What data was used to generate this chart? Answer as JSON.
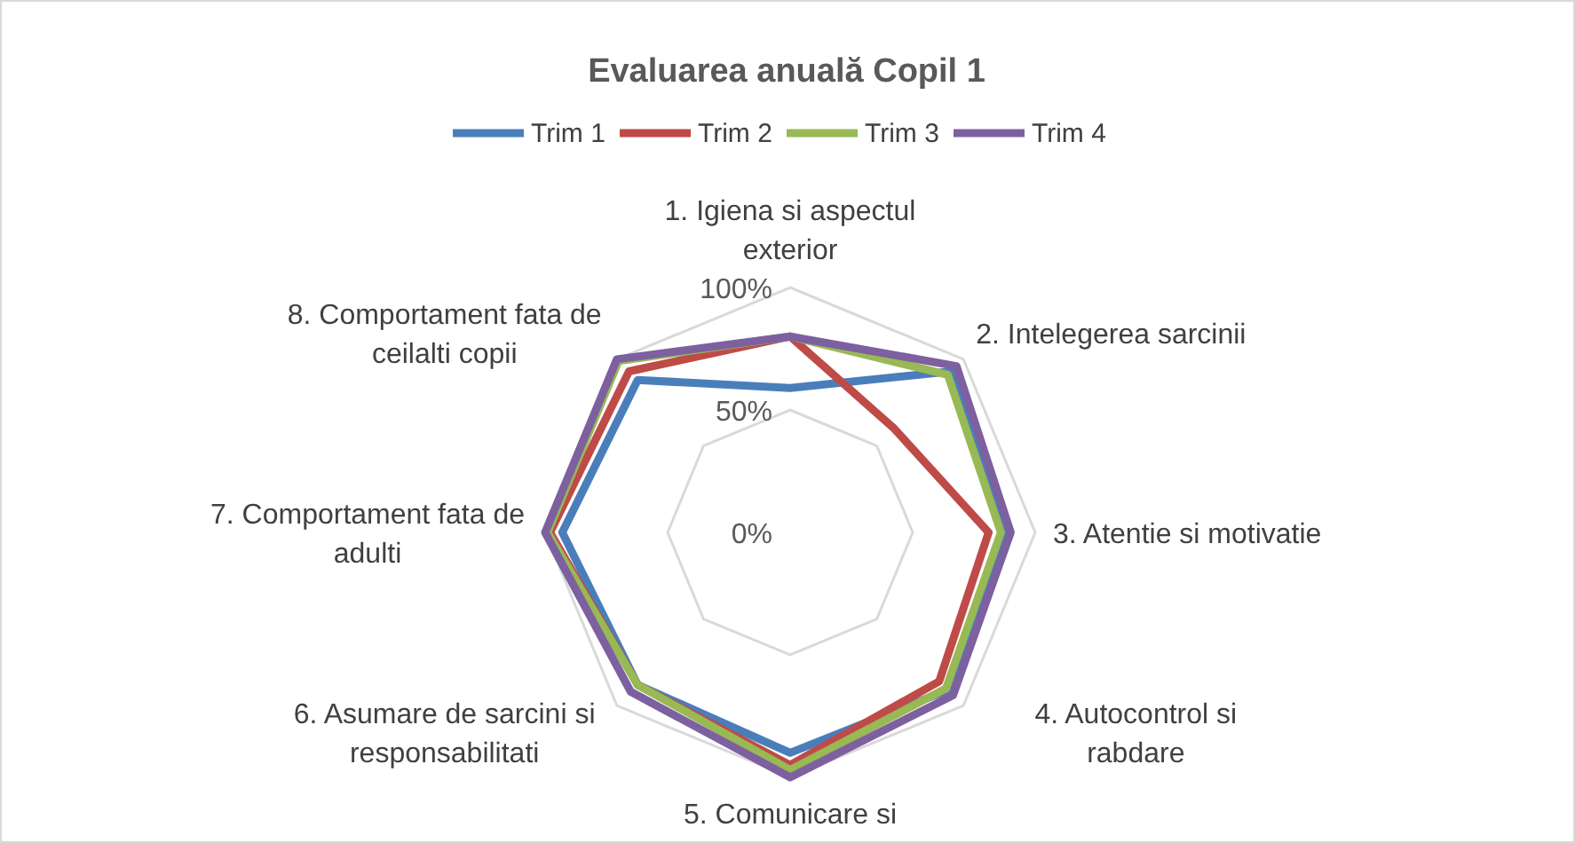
{
  "chart_data": {
    "type": "radar",
    "title": "Evaluarea anuală Copil 1",
    "categories": [
      "1. Igiena si aspectul exterior",
      "2. Intelegerea sarcinii",
      "3. Atentie si motivatie",
      "4. Autocontrol si rabdare",
      "5. Comunicare si",
      "6. Asumare de sarcini si responsabilitati",
      "7. Comportament fata de adulti",
      "8. Comportament fata de ceilalti copii"
    ],
    "series": [
      {
        "name": "Trim 1",
        "color": "#4a7ebb",
        "values": [
          59,
          93,
          88,
          91,
          90,
          88,
          93,
          88
        ]
      },
      {
        "name": "Trim 2",
        "color": "#be4b48",
        "values": [
          80,
          60,
          81,
          86,
          95,
          88,
          98,
          93
        ]
      },
      {
        "name": "Trim 3",
        "color": "#98b954",
        "values": [
          80,
          91,
          86,
          90,
          97,
          88,
          99,
          99
        ]
      },
      {
        "name": "Trim 4",
        "color": "#7d60a0",
        "values": [
          80,
          96,
          90,
          94,
          100,
          92,
          100,
          100
        ]
      }
    ],
    "ylim": [
      0,
      100
    ],
    "yticks": [
      {
        "value": 0,
        "label": "0%"
      },
      {
        "value": 50,
        "label": "50%"
      },
      {
        "value": 100,
        "label": "100%"
      }
    ],
    "grid": true,
    "legend": "top",
    "marker": "none"
  }
}
